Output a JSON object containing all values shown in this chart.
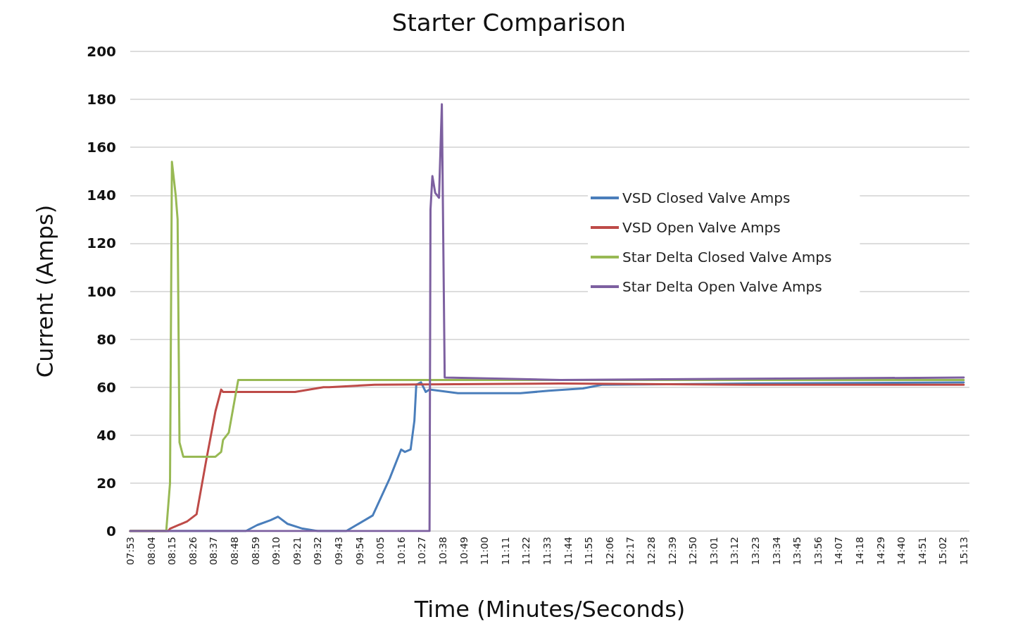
{
  "chart_data": {
    "type": "line",
    "title": "Starter Comparison",
    "xlabel": "Time (Minutes/Seconds)",
    "ylabel": "Current (Amps)",
    "xlim": [
      473,
      916
    ],
    "xticks": [
      {
        "value": 473,
        "label": "07:53"
      },
      {
        "value": 484,
        "label": "08:04"
      },
      {
        "value": 495,
        "label": "08:15"
      },
      {
        "value": 506,
        "label": "08:26"
      },
      {
        "value": 517,
        "label": "08:37"
      },
      {
        "value": 528,
        "label": "08:48"
      },
      {
        "value": 539,
        "label": "08:59"
      },
      {
        "value": 550,
        "label": "09:10"
      },
      {
        "value": 561,
        "label": "09:21"
      },
      {
        "value": 572,
        "label": "09:32"
      },
      {
        "value": 583,
        "label": "09:43"
      },
      {
        "value": 594,
        "label": "09:54"
      },
      {
        "value": 605,
        "label": "10:05"
      },
      {
        "value": 616,
        "label": "10:16"
      },
      {
        "value": 627,
        "label": "10:27"
      },
      {
        "value": 638,
        "label": "10:38"
      },
      {
        "value": 649,
        "label": "10:49"
      },
      {
        "value": 660,
        "label": "11:00"
      },
      {
        "value": 671,
        "label": "11:11"
      },
      {
        "value": 682,
        "label": "11:22"
      },
      {
        "value": 693,
        "label": "11:33"
      },
      {
        "value": 704,
        "label": "11:44"
      },
      {
        "value": 715,
        "label": "11:55"
      },
      {
        "value": 726,
        "label": "12:06"
      },
      {
        "value": 737,
        "label": "12:17"
      },
      {
        "value": 748,
        "label": "12:28"
      },
      {
        "value": 759,
        "label": "12:39"
      },
      {
        "value": 770,
        "label": "12:50"
      },
      {
        "value": 781,
        "label": "13:01"
      },
      {
        "value": 792,
        "label": "13:12"
      },
      {
        "value": 803,
        "label": "13:23"
      },
      {
        "value": 814,
        "label": "13:34"
      },
      {
        "value": 825,
        "label": "13:45"
      },
      {
        "value": 836,
        "label": "13:56"
      },
      {
        "value": 847,
        "label": "14:07"
      },
      {
        "value": 858,
        "label": "14:18"
      },
      {
        "value": 869,
        "label": "14:29"
      },
      {
        "value": 880,
        "label": "14:40"
      },
      {
        "value": 891,
        "label": "14:51"
      },
      {
        "value": 902,
        "label": "15:02"
      },
      {
        "value": 913,
        "label": "15:13"
      }
    ],
    "ylim": [
      0,
      200
    ],
    "yticks": [
      0,
      20,
      40,
      60,
      80,
      100,
      120,
      140,
      160,
      180,
      200
    ],
    "grid": "y",
    "legend": "top right",
    "marker": "none",
    "line_style": "solid",
    "series": [
      {
        "name": "VSD Closed Valve Amps",
        "color": "#4a7ebb",
        "x": [
          473,
          534,
          540,
          547,
          551,
          556,
          564,
          572,
          587,
          601,
          610,
          616,
          618,
          621,
          623,
          624,
          626.5,
          629,
          631,
          646,
          679,
          694,
          712,
          722,
          800,
          913
        ],
        "values": [
          0,
          0,
          2.5,
          4.5,
          6,
          3,
          1,
          0,
          0,
          6.5,
          22,
          34,
          33,
          34,
          46,
          61,
          62,
          58,
          59,
          57.5,
          57.5,
          58.5,
          59.5,
          61,
          61.5,
          62
        ]
      },
      {
        "name": "VSD Open Valve Amps",
        "color": "#be4b48",
        "x": [
          473,
          493,
          494,
          503,
          508,
          513,
          518,
          521,
          522,
          560,
          575,
          578,
          602,
          700,
          800,
          913
        ],
        "values": [
          0,
          0,
          1,
          4,
          7,
          29,
          50,
          59,
          58,
          58,
          60,
          60,
          61,
          61.5,
          61,
          61
        ]
      },
      {
        "name": "Star Delta Closed Valve Amps",
        "color": "#98b954",
        "x": [
          473,
          492,
          494,
          495,
          497,
          498,
          499,
          501,
          518,
          521,
          522,
          525,
          530,
          600,
          700,
          800,
          913
        ],
        "values": [
          0,
          0,
          20,
          154,
          140,
          130,
          37,
          31,
          31,
          33,
          38,
          41,
          63,
          63,
          63,
          63,
          63
        ]
      },
      {
        "name": "Star Delta Open Valve Amps",
        "color": "#7d60a0",
        "x": [
          473,
          631,
          631.5,
          632.5,
          634,
          636,
          637.5,
          639,
          700,
          800,
          913
        ],
        "values": [
          0,
          0,
          134,
          148,
          141,
          139,
          178,
          64,
          63,
          63.5,
          64
        ]
      }
    ]
  }
}
